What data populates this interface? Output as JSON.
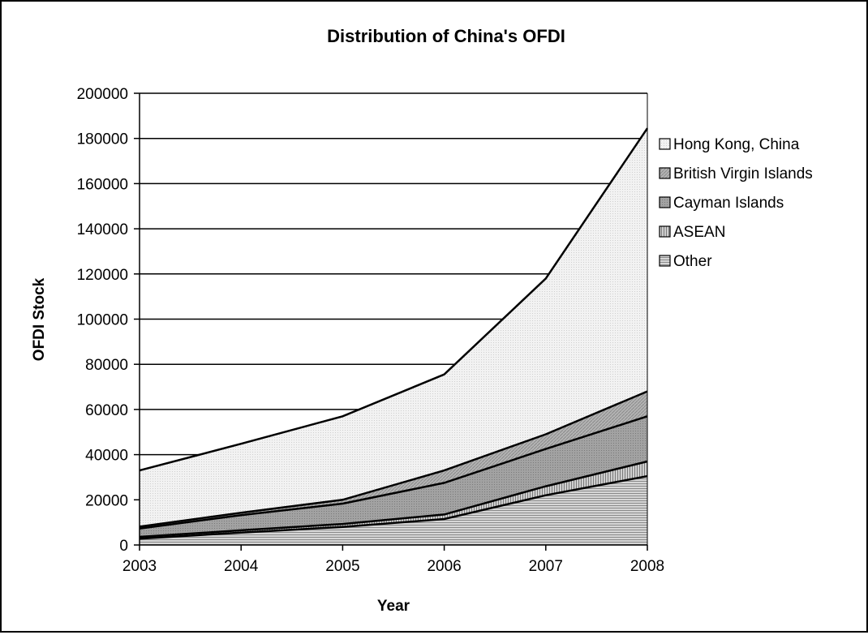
{
  "chart_data": {
    "type": "area",
    "stacked": true,
    "title": "Distribution of China's OFDI",
    "xlabel": "Year",
    "ylabel": "OFDI Stock",
    "categories": [
      "2003",
      "2004",
      "2005",
      "2006",
      "2007",
      "2008"
    ],
    "ylim": [
      0,
      200000
    ],
    "yticks": [
      0,
      20000,
      40000,
      60000,
      80000,
      100000,
      120000,
      140000,
      160000,
      180000,
      200000
    ],
    "grid": true,
    "legend_position": "right",
    "series": [
      {
        "name": "Other",
        "values": [
          2800,
          5500,
          8000,
          11500,
          22000,
          30500
        ],
        "pattern": "hlines"
      },
      {
        "name": "ASEAN",
        "values": [
          800,
          1000,
          1300,
          2000,
          4000,
          6500
        ],
        "pattern": "vlines"
      },
      {
        "name": "Cayman Islands",
        "values": [
          3700,
          6700,
          9000,
          14000,
          16500,
          20000
        ],
        "pattern": "dots"
      },
      {
        "name": "British Virgin Islands",
        "values": [
          800,
          1100,
          1700,
          5500,
          6500,
          11000
        ],
        "pattern": "diag"
      },
      {
        "name": "Hong Kong, China",
        "values": [
          24900,
          30500,
          37000,
          42500,
          69000,
          116500
        ],
        "pattern": "light"
      }
    ],
    "legend_order": [
      "Hong Kong, China",
      "British Virgin Islands",
      "Cayman Islands",
      "ASEAN",
      "Other"
    ]
  }
}
